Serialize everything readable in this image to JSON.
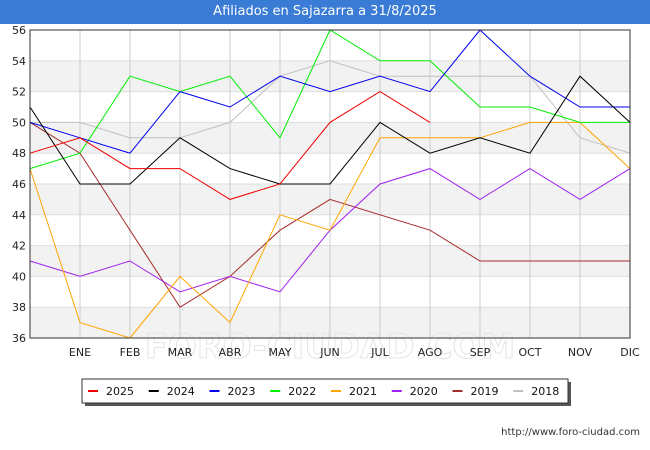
{
  "header": {
    "title": "Afiliados en Sajazarra a 31/8/2025"
  },
  "watermark": "FORO-CIUDAD.COM",
  "source_url": "http://www.foro-ciudad.com",
  "chart_data": {
    "type": "line",
    "title": "Afiliados en Sajazarra a 31/8/2025",
    "xlabel": "",
    "ylabel": "",
    "categories": [
      "",
      "ENE",
      "FEB",
      "MAR",
      "ABR",
      "MAY",
      "JUN",
      "JUL",
      "AGO",
      "SEP",
      "OCT",
      "NOV",
      "DIC"
    ],
    "ylim": [
      36,
      56
    ],
    "yticks": [
      36,
      38,
      40,
      42,
      44,
      46,
      48,
      50,
      52,
      54,
      56
    ],
    "grid": true,
    "legend_position": "bottom",
    "series": [
      {
        "name": "2025",
        "color": "#ee0000",
        "values": [
          48,
          49,
          47,
          47,
          45,
          46,
          50,
          52,
          50,
          null,
          null,
          null,
          null
        ]
      },
      {
        "name": "2024",
        "color": "#000000",
        "values": [
          51,
          46,
          46,
          49,
          47,
          46,
          46,
          50,
          48,
          49,
          48,
          53,
          50
        ]
      },
      {
        "name": "2023",
        "color": "#0000ee",
        "values": [
          50,
          49,
          48,
          52,
          51,
          53,
          52,
          53,
          52,
          56,
          53,
          51,
          51
        ]
      },
      {
        "name": "2022",
        "color": "#00ee00",
        "values": [
          47,
          48,
          53,
          52,
          53,
          49,
          56,
          54,
          54,
          51,
          51,
          50,
          50
        ]
      },
      {
        "name": "2021",
        "color": "#ffa500",
        "values": [
          47,
          37,
          36,
          40,
          37,
          44,
          43,
          49,
          49,
          49,
          50,
          50,
          47
        ]
      },
      {
        "name": "2020",
        "color": "#a020f0",
        "values": [
          41,
          40,
          41,
          39,
          40,
          39,
          43,
          46,
          47,
          45,
          47,
          45,
          47
        ]
      },
      {
        "name": "2019",
        "color": "#a52a2a",
        "values": [
          50,
          48,
          43,
          38,
          40,
          43,
          45,
          44,
          43,
          41,
          41,
          41,
          41
        ]
      },
      {
        "name": "2018",
        "color": "#c0c0c0",
        "values": [
          50,
          50,
          49,
          49,
          50,
          53,
          54,
          53,
          53,
          53,
          53,
          49,
          48
        ]
      }
    ]
  }
}
